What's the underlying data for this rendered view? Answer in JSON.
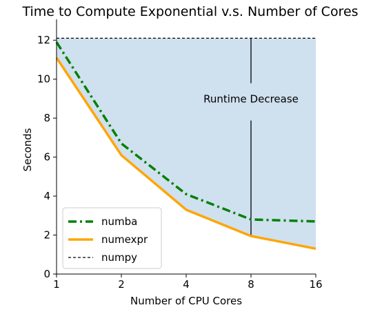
{
  "chart_data": {
    "type": "line",
    "title": "Time to Compute Exponential v.s. Number of Cores",
    "xlabel": "Number of CPU Cores",
    "ylabel": "Seconds",
    "x_scale": "log2",
    "x": [
      1,
      2,
      4,
      8,
      16
    ],
    "x_tick_labels": [
      "1",
      "2",
      "4",
      "8",
      "16"
    ],
    "xlim": [
      1,
      16
    ],
    "ylim": [
      0,
      13
    ],
    "y_ticks": [
      0,
      2,
      4,
      6,
      8,
      10,
      12
    ],
    "y_tick_labels": [
      "0",
      "2",
      "4",
      "6",
      "8",
      "10",
      "12"
    ],
    "grid": false,
    "legend_position": "lower-left",
    "series": [
      {
        "name": "numba",
        "values": [
          11.9,
          6.7,
          4.1,
          2.8,
          2.7
        ],
        "color": "#008000",
        "style": "dash-dot"
      },
      {
        "name": "numexpr",
        "values": [
          11.1,
          6.1,
          3.3,
          1.95,
          1.3
        ],
        "color": "#ffa500",
        "style": "solid"
      },
      {
        "name": "numpy",
        "values": [
          12.1,
          12.1,
          12.1,
          12.1,
          12.1
        ],
        "color": "#000000",
        "style": "dashed"
      }
    ],
    "shaded_region": {
      "between": [
        "numpy",
        "numexpr"
      ],
      "color": "#cfe0ef"
    },
    "annotation": {
      "text": "Runtime Decrease",
      "x": 8,
      "y_from": 1.95,
      "y_to": 12.1
    }
  }
}
